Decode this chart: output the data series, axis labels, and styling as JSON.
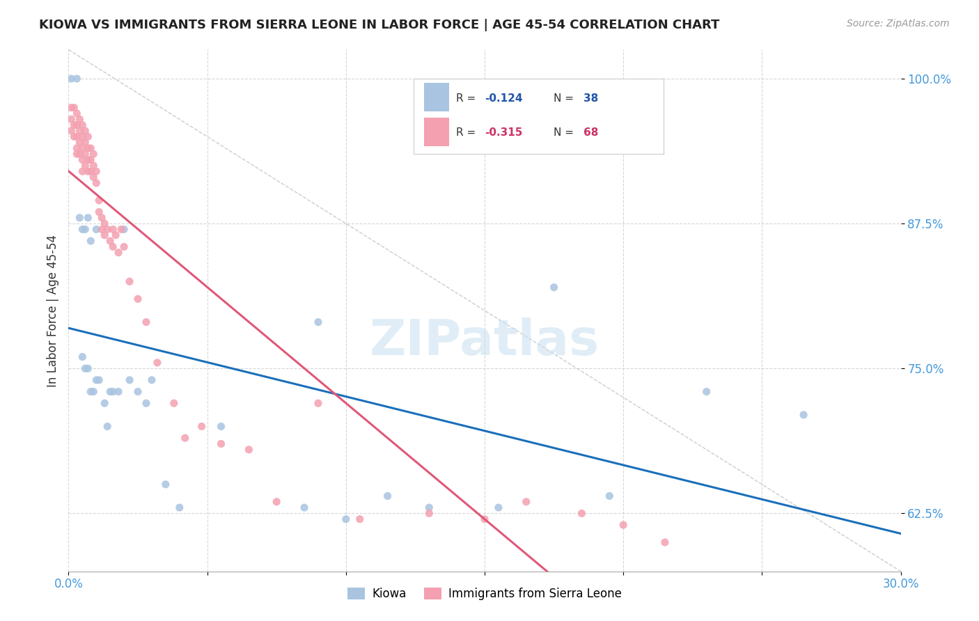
{
  "title": "KIOWA VS IMMIGRANTS FROM SIERRA LEONE IN LABOR FORCE | AGE 45-54 CORRELATION CHART",
  "source": "Source: ZipAtlas.com",
  "ylabel": "In Labor Force | Age 45-54",
  "xlim": [
    0.0,
    0.3
  ],
  "ylim": [
    0.575,
    1.025
  ],
  "xticks": [
    0.0,
    0.05,
    0.1,
    0.15,
    0.2,
    0.25,
    0.3
  ],
  "xticklabels": [
    "0.0%",
    "",
    "",
    "",
    "",
    "",
    "30.0%"
  ],
  "yticks": [
    0.625,
    0.75,
    0.875,
    1.0
  ],
  "yticklabels": [
    "62.5%",
    "75.0%",
    "87.5%",
    "100.0%"
  ],
  "kiowa_color": "#a8c4e0",
  "sierra_leone_color": "#f4a0b0",
  "trendline_kiowa_color": "#1a6fba",
  "trendline_sierra_leone_color": "#e05878",
  "watermark": "ZIPatlas",
  "legend_R_color": "#2255aa",
  "legend_N_color": "#2255aa",
  "legend_R_sierra_color": "#cc3366",
  "legend_N_sierra_color": "#cc3366",
  "kiowa_x": [
    0.001,
    0.003,
    0.004,
    0.005,
    0.005,
    0.006,
    0.006,
    0.007,
    0.007,
    0.008,
    0.008,
    0.009,
    0.01,
    0.01,
    0.011,
    0.013,
    0.014,
    0.015,
    0.016,
    0.018,
    0.02,
    0.022,
    0.025,
    0.028,
    0.03,
    0.035,
    0.04,
    0.055,
    0.085,
    0.09,
    0.1,
    0.115,
    0.13,
    0.155,
    0.175,
    0.195,
    0.23,
    0.265
  ],
  "kiowa_y": [
    1.0,
    1.0,
    0.88,
    0.87,
    0.76,
    0.87,
    0.75,
    0.88,
    0.75,
    0.86,
    0.73,
    0.73,
    0.87,
    0.74,
    0.74,
    0.72,
    0.7,
    0.73,
    0.73,
    0.73,
    0.87,
    0.74,
    0.73,
    0.72,
    0.74,
    0.65,
    0.63,
    0.7,
    0.63,
    0.79,
    0.62,
    0.64,
    0.63,
    0.63,
    0.82,
    0.64,
    0.73,
    0.71
  ],
  "sierra_x": [
    0.001,
    0.001,
    0.001,
    0.002,
    0.002,
    0.002,
    0.003,
    0.003,
    0.003,
    0.003,
    0.003,
    0.004,
    0.004,
    0.004,
    0.004,
    0.005,
    0.005,
    0.005,
    0.005,
    0.005,
    0.006,
    0.006,
    0.006,
    0.006,
    0.007,
    0.007,
    0.007,
    0.007,
    0.008,
    0.008,
    0.008,
    0.009,
    0.009,
    0.009,
    0.01,
    0.01,
    0.011,
    0.011,
    0.012,
    0.012,
    0.013,
    0.013,
    0.014,
    0.015,
    0.016,
    0.016,
    0.017,
    0.018,
    0.019,
    0.02,
    0.022,
    0.025,
    0.028,
    0.032,
    0.038,
    0.042,
    0.048,
    0.055,
    0.065,
    0.075,
    0.09,
    0.105,
    0.13,
    0.15,
    0.165,
    0.185,
    0.2,
    0.215
  ],
  "sierra_y": [
    0.975,
    0.965,
    0.955,
    0.975,
    0.96,
    0.95,
    0.97,
    0.96,
    0.95,
    0.94,
    0.935,
    0.965,
    0.955,
    0.945,
    0.935,
    0.96,
    0.95,
    0.94,
    0.93,
    0.92,
    0.955,
    0.945,
    0.935,
    0.925,
    0.95,
    0.94,
    0.93,
    0.92,
    0.94,
    0.93,
    0.92,
    0.935,
    0.925,
    0.915,
    0.92,
    0.91,
    0.895,
    0.885,
    0.88,
    0.87,
    0.875,
    0.865,
    0.87,
    0.86,
    0.87,
    0.855,
    0.865,
    0.85,
    0.87,
    0.855,
    0.825,
    0.81,
    0.79,
    0.755,
    0.72,
    0.69,
    0.7,
    0.685,
    0.68,
    0.635,
    0.72,
    0.62,
    0.625,
    0.62,
    0.635,
    0.625,
    0.615,
    0.6
  ]
}
